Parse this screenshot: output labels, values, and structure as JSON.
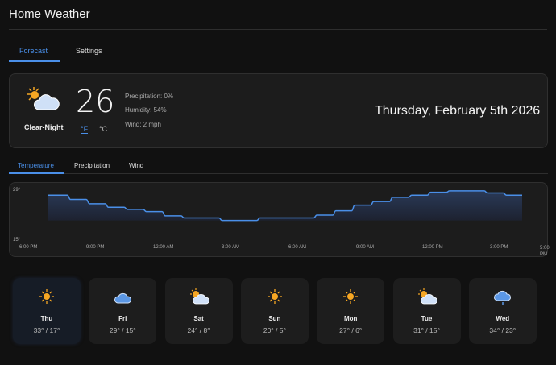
{
  "header": {
    "title": "Home Weather"
  },
  "tabs": [
    {
      "label": "Forecast",
      "active": true
    },
    {
      "label": "Settings",
      "active": false
    }
  ],
  "current": {
    "condition": "Clear-Night",
    "icon": "partly-cloudy-icon",
    "temperature": "26",
    "unit_f": "°F",
    "unit_c": "°C",
    "precipitation": "Precipitation: 0%",
    "humidity": "Humidity: 54%",
    "wind": "Wind: 2 mph",
    "date": "Thursday, February 5th 2026"
  },
  "chart_tabs": [
    {
      "label": "Temperature",
      "active": true
    },
    {
      "label": "Precipitation",
      "active": false
    },
    {
      "label": "Wind",
      "active": false
    }
  ],
  "chart_data": {
    "type": "line",
    "title": "",
    "xlabel": "",
    "ylabel": "",
    "ylim": [
      15,
      29
    ],
    "y_ticks": [
      "29°",
      "15°"
    ],
    "x_ticks": [
      "6:00 PM",
      "9:00 PM",
      "12:00 AM",
      "3:00 AM",
      "6:00 AM",
      "9:00 AM",
      "12:00 PM",
      "3:00 PM",
      "5:00 PM"
    ],
    "series": [
      {
        "name": "Temperature",
        "values": [
          27.6,
          26.4,
          25.2,
          24.2,
          23.6,
          23,
          21.8,
          21.2,
          21.2,
          20.5,
          20.5,
          21.2,
          21.2,
          21.2,
          22,
          23.2,
          24.8,
          25.8,
          27,
          27.6,
          28.4,
          28.8,
          28.8,
          28.2,
          27.6
        ]
      }
    ]
  },
  "accent": "#4a8fe8",
  "forecast": [
    {
      "day": "Thu",
      "temps": "33° / 17°",
      "icon": "sun"
    },
    {
      "day": "Fri",
      "temps": "29° / 15°",
      "icon": "cloud"
    },
    {
      "day": "Sat",
      "temps": "24° / 8°",
      "icon": "partly"
    },
    {
      "day": "Sun",
      "temps": "20° / 5°",
      "icon": "sun"
    },
    {
      "day": "Mon",
      "temps": "27° / 6°",
      "icon": "sun"
    },
    {
      "day": "Tue",
      "temps": "31° / 15°",
      "icon": "partly"
    },
    {
      "day": "Wed",
      "temps": "34° / 23°",
      "icon": "rain"
    }
  ]
}
